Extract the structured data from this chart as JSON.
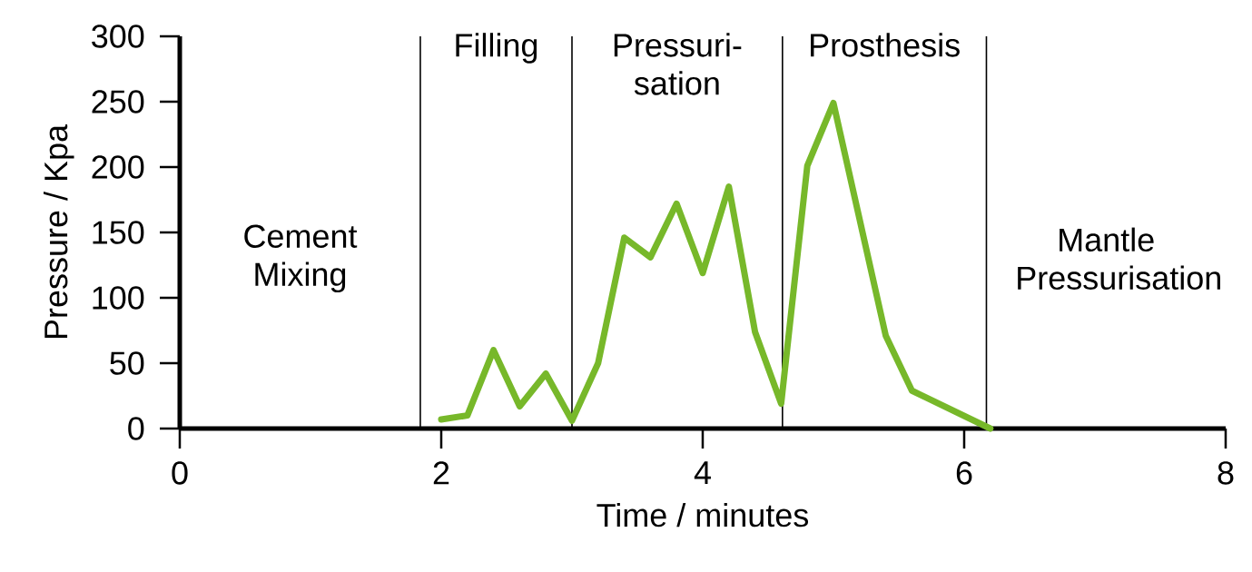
{
  "chart_data": {
    "type": "line",
    "xlabel": "Time / minutes",
    "ylabel": "Pressure / Kpa",
    "x": [
      2.0,
      2.2,
      2.4,
      2.6,
      2.8,
      3.0,
      3.2,
      3.4,
      3.6,
      3.8,
      4.0,
      4.2,
      4.4,
      4.6,
      4.8,
      5.0,
      5.2,
      5.4,
      5.6,
      6.2
    ],
    "series": [
      {
        "color": "#77b82a",
        "values": [
          7,
          10,
          60,
          17,
          42,
          6,
          50,
          146,
          131,
          172,
          119,
          185,
          74,
          19,
          201,
          249,
          160,
          71,
          29,
          0
        ]
      }
    ],
    "xlim": [
      0,
      8
    ],
    "ylim": [
      0,
      300
    ],
    "xticks": [
      0,
      2,
      4,
      6,
      8
    ],
    "yticks": [
      0,
      50,
      100,
      150,
      200,
      250,
      300
    ],
    "grid": false,
    "marker": "none",
    "line_style": "solid",
    "ref_lines": [
      {
        "axis": "x",
        "value": 1.84
      },
      {
        "axis": "x",
        "value": 3.0
      },
      {
        "axis": "x",
        "value": 4.61
      },
      {
        "axis": "x",
        "value": 6.17
      }
    ],
    "annotations": [
      "Cement Mixing",
      "Filling",
      "Pressuri- sation",
      "Prosthesis",
      "Mantle Pressurisation"
    ]
  }
}
